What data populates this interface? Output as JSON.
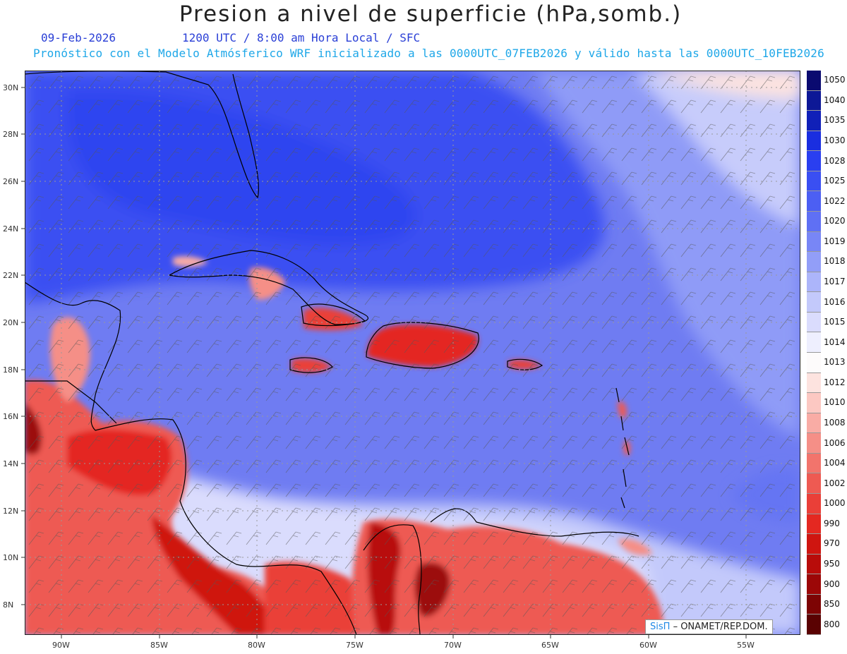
{
  "title": "Presion a nivel de superficie (hPa,somb.)",
  "date": "09-Feb-2026",
  "time_line": "1200 UTC / 8:00 am Hora Local / SFC",
  "info_line": "Pronóstico con el Modelo Atmósferico WRF inicializado a las 0000UTC_07FEB2026 y válido hasta las  0000UTC_10FEB2026",
  "lat_labels": [
    "30N",
    "28N",
    "26N",
    "24N",
    "22N",
    "20N",
    "18N",
    "16N",
    "14N",
    "12N",
    "10N",
    "8N"
  ],
  "lon_labels": [
    "90W",
    "85W",
    "80W",
    "75W",
    "70W",
    "65W",
    "60W",
    "55W"
  ],
  "colorbar": {
    "levels": [
      "1050",
      "1040",
      "1035",
      "1030",
      "1028",
      "1025",
      "1022",
      "1020",
      "1019",
      "1018",
      "1017",
      "1016",
      "1015",
      "1014",
      "1013",
      "1012",
      "1010",
      "1008",
      "1006",
      "1004",
      "1002",
      "1000",
      "990",
      "970",
      "950",
      "900",
      "850",
      "800"
    ],
    "colors": [
      "#0a0a70",
      "#0d1896",
      "#1020b8",
      "#1a2ee0",
      "#2a3ff0",
      "#3a4ff2",
      "#4c5ff3",
      "#5f70f4",
      "#7886f6",
      "#929ef8",
      "#acb5fa",
      "#c3c9fb",
      "#dadcfd",
      "#eeeffe",
      "#fdfbfb",
      "#fde3df",
      "#fcc8c2",
      "#f9aca5",
      "#f58f87",
      "#f2746c",
      "#ee5a52",
      "#ea3f38",
      "#e42821",
      "#cf1510",
      "#b80c0a",
      "#9c0707",
      "#7d0404",
      "#5a0202"
    ]
  },
  "credit": {
    "sis": "SisΠ",
    "text": "– ONAMET/REP.DOM."
  }
}
